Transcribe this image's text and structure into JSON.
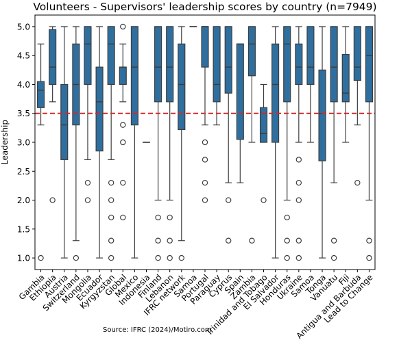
{
  "chart_data": {
    "type": "box",
    "title": "Volunteers - Supervisors' leadership scores by country (n=7949)",
    "xlabel": "",
    "ylabel": "Leadership",
    "source": "Source: IFRC (2024)/Motiro.com",
    "ylim": [
      0.8,
      5.2
    ],
    "yticks": [
      1.0,
      1.5,
      2.0,
      2.5,
      3.0,
      3.5,
      4.0,
      4.5,
      5.0
    ],
    "reference_line": {
      "y": 3.5,
      "color": "#d62728",
      "style": "dashed"
    },
    "box_color": "#2f6f9f",
    "categories": [
      "Gambia",
      "Ethiopia",
      "Austria",
      "Switzerland",
      "Mongolia",
      "Ecuador",
      "Kyrgyzstan",
      "Global",
      "Mexico",
      "Indonesia",
      "Finland",
      "Lebanon",
      "IFRC network",
      "Samoa",
      "Portugal",
      "Paraguay",
      "Cyprus",
      "Spain",
      "Zambia",
      "Trinidad and Tobago",
      "El Salvador",
      "Honduras",
      "Ukraine",
      "Samoa",
      "Tonga",
      "Vanuatu",
      "Fiji",
      "Antigua and Barbuda",
      "Lead to Change"
    ],
    "boxes": [
      {
        "whislo": 3.3,
        "q1": 3.6,
        "med": 3.9,
        "q3": 4.05,
        "whishi": 4.7,
        "fliers": [
          1.0
        ]
      },
      {
        "whislo": 3.7,
        "q1": 4.0,
        "med": 4.3,
        "q3": 4.95,
        "whishi": 5.0,
        "fliers": [
          2.0
        ]
      },
      {
        "whislo": 1.0,
        "q1": 2.7,
        "med": 3.3,
        "q3": 4.0,
        "whishi": 5.0,
        "fliers": []
      },
      {
        "whislo": 1.3,
        "q1": 3.3,
        "med": 4.0,
        "q3": 4.7,
        "whishi": 5.0,
        "fliers": [
          1.0
        ]
      },
      {
        "whislo": 2.7,
        "q1": 4.0,
        "med": 4.7,
        "q3": 5.0,
        "whishi": 5.0,
        "fliers": [
          2.0,
          2.3
        ]
      },
      {
        "whislo": 1.0,
        "q1": 2.85,
        "med": 3.7,
        "q3": 4.3,
        "whishi": 5.0,
        "fliers": []
      },
      {
        "whislo": 2.7,
        "q1": 4.0,
        "med": 4.7,
        "q3": 5.0,
        "whishi": 5.0,
        "fliers": [
          1.0,
          1.3,
          1.7,
          2.0,
          2.3
        ]
      },
      {
        "whislo": 3.7,
        "q1": 4.0,
        "med": 4.3,
        "q3": 4.3,
        "whishi": 4.7,
        "fliers": [
          1.7,
          2.3,
          3.0,
          3.3,
          5.0
        ]
      },
      {
        "whislo": 1.0,
        "q1": 3.3,
        "med": 4.3,
        "q3": 5.0,
        "whishi": 5.0,
        "fliers": []
      },
      {
        "whislo": 3.0,
        "q1": 3.0,
        "med": 3.0,
        "q3": 3.0,
        "whishi": 3.0,
        "fliers": []
      },
      {
        "whislo": 2.0,
        "q1": 3.7,
        "med": 4.3,
        "q3": 5.0,
        "whishi": 5.0,
        "fliers": [
          1.0,
          1.3,
          1.7
        ]
      },
      {
        "whislo": 2.0,
        "q1": 3.7,
        "med": 4.3,
        "q3": 5.0,
        "whishi": 5.0,
        "fliers": [
          1.0,
          1.3,
          1.7
        ]
      },
      {
        "whislo": 1.3,
        "q1": 3.22,
        "med": 4.0,
        "q3": 4.7,
        "whishi": 5.0,
        "fliers": [
          1.0
        ]
      },
      {
        "whislo": 5.0,
        "q1": 5.0,
        "med": 5.0,
        "q3": 5.0,
        "whishi": 5.0,
        "fliers": []
      },
      {
        "whislo": 3.3,
        "q1": 4.3,
        "med": 5.0,
        "q3": 5.0,
        "whishi": 5.0,
        "fliers": [
          2.0,
          2.3,
          2.7,
          3.0
        ]
      },
      {
        "whislo": 3.3,
        "q1": 3.7,
        "med": 4.0,
        "q3": 5.0,
        "whishi": 5.0,
        "fliers": []
      },
      {
        "whislo": 2.3,
        "q1": 3.85,
        "med": 4.3,
        "q3": 5.0,
        "whishi": 5.0,
        "fliers": [
          1.3,
          2.0
        ]
      },
      {
        "whislo": 2.3,
        "q1": 3.05,
        "med": 4.7,
        "q3": 4.7,
        "whishi": 4.7,
        "fliers": []
      },
      {
        "whislo": 3.0,
        "q1": 4.15,
        "med": 4.7,
        "q3": 5.0,
        "whishi": 5.0,
        "fliers": [
          1.3
        ]
      },
      {
        "whislo": 3.0,
        "q1": 3.0,
        "med": 3.15,
        "q3": 3.6,
        "whishi": 4.0,
        "fliers": [
          2.0
        ]
      },
      {
        "whislo": 1.0,
        "q1": 3.0,
        "med": 4.0,
        "q3": 4.7,
        "whishi": 5.0,
        "fliers": []
      },
      {
        "whislo": 2.0,
        "q1": 3.7,
        "med": 4.7,
        "q3": 5.0,
        "whishi": 5.0,
        "fliers": [
          1.0,
          1.3,
          1.7
        ]
      },
      {
        "whislo": 3.0,
        "q1": 4.0,
        "med": 4.3,
        "q3": 4.7,
        "whishi": 5.0,
        "fliers": [
          1.0,
          1.3,
          2.0,
          2.3,
          2.7
        ]
      },
      {
        "whislo": 3.0,
        "q1": 4.0,
        "med": 4.3,
        "q3": 5.0,
        "whishi": 5.0,
        "fliers": []
      },
      {
        "whislo": 1.0,
        "q1": 2.68,
        "med": 3.5,
        "q3": 4.25,
        "whishi": 5.0,
        "fliers": []
      },
      {
        "whislo": 2.3,
        "q1": 3.7,
        "med": 4.3,
        "q3": 5.0,
        "whishi": 5.0,
        "fliers": [
          1.0,
          1.3
        ]
      },
      {
        "whislo": 3.0,
        "q1": 3.7,
        "med": 3.85,
        "q3": 4.52,
        "whishi": 5.0,
        "fliers": []
      },
      {
        "whislo": 3.3,
        "q1": 4.07,
        "med": 4.3,
        "q3": 5.0,
        "whishi": 5.0,
        "fliers": [
          2.3
        ]
      },
      {
        "whislo": 2.0,
        "q1": 3.7,
        "med": 4.5,
        "q3": 5.0,
        "whishi": 5.0,
        "fliers": [
          1.0,
          1.3
        ]
      }
    ],
    "grid": false,
    "legend": "none"
  }
}
